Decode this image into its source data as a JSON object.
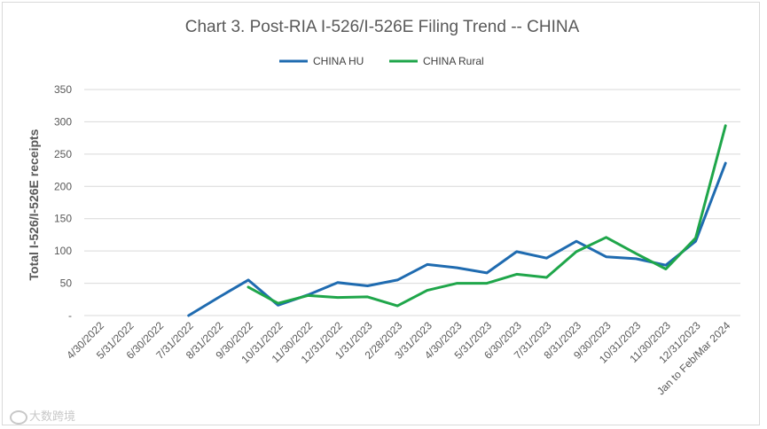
{
  "chart_data": {
    "type": "line",
    "title": "Chart 3. Post-RIA I-526/I-526E Filing Trend -- CHINA",
    "xlabel": "",
    "ylabel": "Total I-526/I-526E receipts",
    "ylim": [
      0,
      350
    ],
    "yticks": [
      "-",
      "50",
      "100",
      "150",
      "200",
      "250",
      "300",
      "350"
    ],
    "grid": true,
    "legend_position": "top",
    "categories": [
      "4/30/2022",
      "5/31/2022",
      "6/30/2022",
      "7/31/2022",
      "8/31/2022",
      "9/30/2022",
      "10/31/2022",
      "11/30/2022",
      "12/31/2022",
      "1/31/2023",
      "2/28/2023",
      "3/31/2023",
      "4/30/2023",
      "5/31/2023",
      "6/30/2023",
      "7/31/2023",
      "8/31/2023",
      "9/30/2023",
      "10/31/2023",
      "11/30/2023",
      "12/31/2023",
      "Jan to Feb/Mar 2024"
    ],
    "series": [
      {
        "name": "CHINA HU",
        "color": "#1f6bb0",
        "values": [
          null,
          null,
          null,
          0,
          28,
          55,
          16,
          32,
          51,
          46,
          55,
          79,
          74,
          66,
          99,
          89,
          115,
          91,
          88,
          78,
          115,
          236
        ]
      },
      {
        "name": "CHINA Rural",
        "color": "#1fa64a",
        "values": [
          null,
          null,
          null,
          null,
          null,
          44,
          19,
          31,
          28,
          29,
          15,
          39,
          50,
          50,
          64,
          59,
          99,
          121,
          96,
          72,
          120,
          294
        ]
      }
    ]
  },
  "watermark": "大数跨境"
}
